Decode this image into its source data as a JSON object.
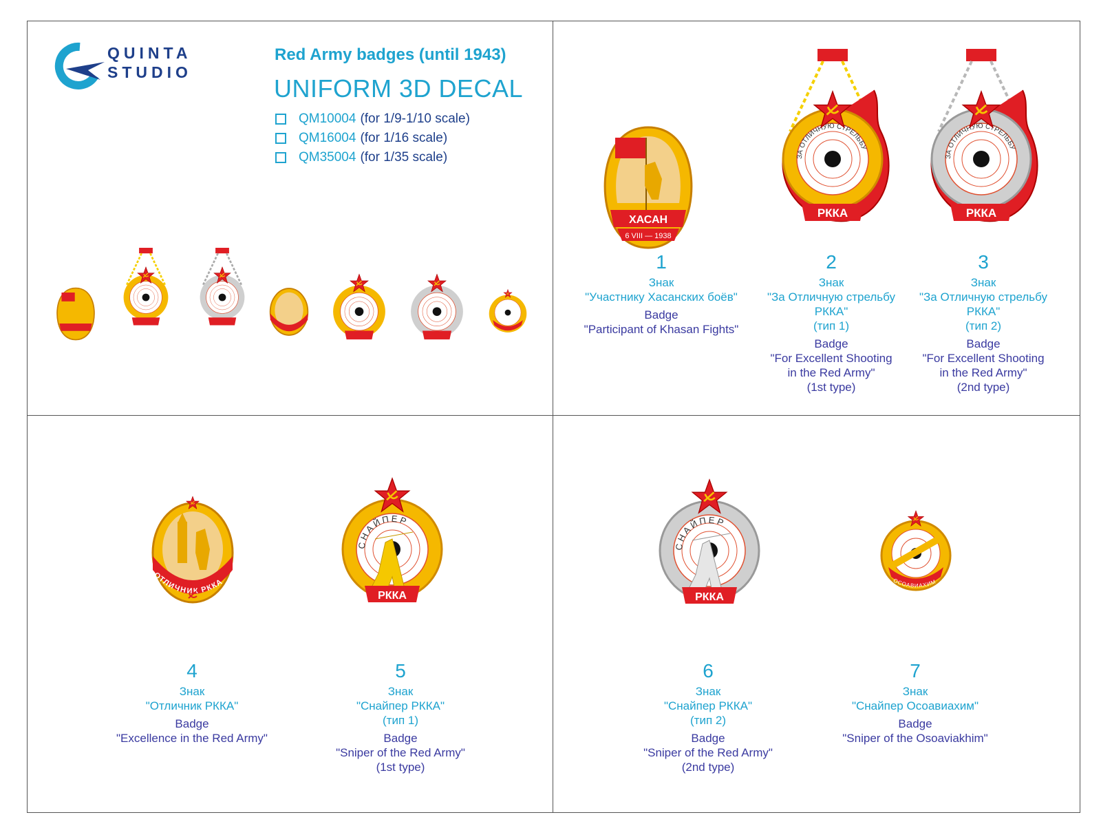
{
  "brand": {
    "line1": "QUINTA",
    "line2": "STUDIO"
  },
  "header": {
    "title": "Red Army badges (until 1943)",
    "subtitle": "UNIFORM 3D DECAL",
    "options": [
      {
        "code": "QM10004",
        "scale": "(for 1/9-1/10 scale)"
      },
      {
        "code": "QM16004",
        "scale": "(for 1/16 scale)"
      },
      {
        "code": "QM35004",
        "scale": "(for 1/35 scale)"
      }
    ]
  },
  "badge_texts": {
    "khasan": "ХАСАН",
    "khasan_date": "6 VIII — 1938",
    "rkka": "РККА",
    "shooting_ring": "ЗА ОТЛИЧНУЮ СТРЕЛЬБУ",
    "sniper": "СНАЙПЕР",
    "excellence_ribbon": "ОТЛИЧНИК РККА",
    "osoaviakhim": "ОСОАВИАХИМ"
  },
  "badges": [
    {
      "number": "1",
      "ru": [
        "Знак",
        "\"Участнику Хасанских боёв\""
      ],
      "en": [
        "Badge",
        "\"Participant of Khasan Fights\""
      ]
    },
    {
      "number": "2",
      "ru": [
        "Знак",
        "\"За Отличную стрельбу",
        "РККА\"",
        "(тип 1)"
      ],
      "en": [
        "Badge",
        "\"For Excellent Shooting",
        "in the Red Army\"",
        "(1st type)"
      ]
    },
    {
      "number": "3",
      "ru": [
        "Знак",
        "\"За Отличную стрельбу",
        "РККА\"",
        "(тип 2)"
      ],
      "en": [
        "Badge",
        "\"For Excellent Shooting",
        "in the Red Army\"",
        "(2nd type)"
      ]
    },
    {
      "number": "4",
      "ru": [
        "Знак",
        "\"Отличник РККА\""
      ],
      "en": [
        "Badge",
        "\"Excellence in the Red Army\""
      ]
    },
    {
      "number": "5",
      "ru": [
        "Знак",
        "\"Снайпер РККА\"",
        "(тип 1)"
      ],
      "en": [
        "Badge",
        "\"Sniper of the Red Army\"",
        "(1st type)"
      ]
    },
    {
      "number": "6",
      "ru": [
        "Знак",
        "\"Снайпер РККА\"",
        "(тип 2)"
      ],
      "en": [
        "Badge",
        "\"Sniper of the Red Army\"",
        "(2nd type)"
      ]
    },
    {
      "number": "7",
      "ru": [
        "Знак",
        "\"Снайпер Осоавиахим\""
      ],
      "en": [
        "Badge",
        "\"Sniper of the Osoaviakhim\""
      ]
    }
  ],
  "colors": {
    "accent": "#1ea3cf",
    "navy": "#1e3f8a",
    "english": "#3a3aa0",
    "red": "#e01e24",
    "gold": "#f5b800"
  }
}
